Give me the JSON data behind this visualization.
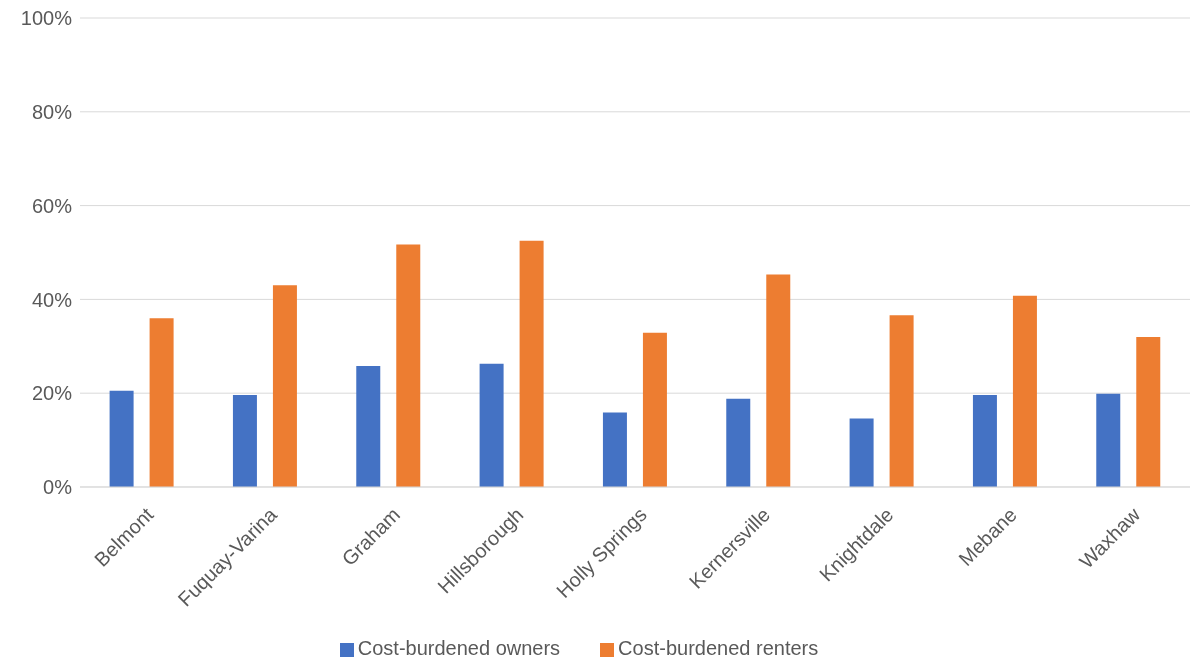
{
  "chart_data": {
    "type": "bar",
    "categories": [
      "Belmont",
      "Fuquay-Varina",
      "Graham",
      "Hillsborough",
      "Holly Springs",
      "Kernersville",
      "Knightdale",
      "Mebane",
      "Waxhaw"
    ],
    "series": [
      {
        "name": "Cost-burdened owners",
        "color": "#4472c4",
        "values": [
          20.5,
          19.6,
          25.8,
          26.3,
          15.9,
          18.8,
          14.6,
          19.6,
          19.9
        ]
      },
      {
        "name": "Cost-burdened renters",
        "color": "#ed7d31",
        "values": [
          36,
          43,
          51.7,
          52.5,
          32.9,
          45.3,
          36.6,
          40.8,
          32
        ]
      }
    ],
    "ylim": [
      0,
      100
    ],
    "yticks": [
      {
        "value": 0,
        "label": "0%"
      },
      {
        "value": 20,
        "label": "20%"
      },
      {
        "value": 40,
        "label": "40%"
      },
      {
        "value": 60,
        "label": "60%"
      },
      {
        "value": 80,
        "label": "80%"
      },
      {
        "value": 100,
        "label": "100%"
      }
    ],
    "grid": "y",
    "legend": "bottom"
  }
}
